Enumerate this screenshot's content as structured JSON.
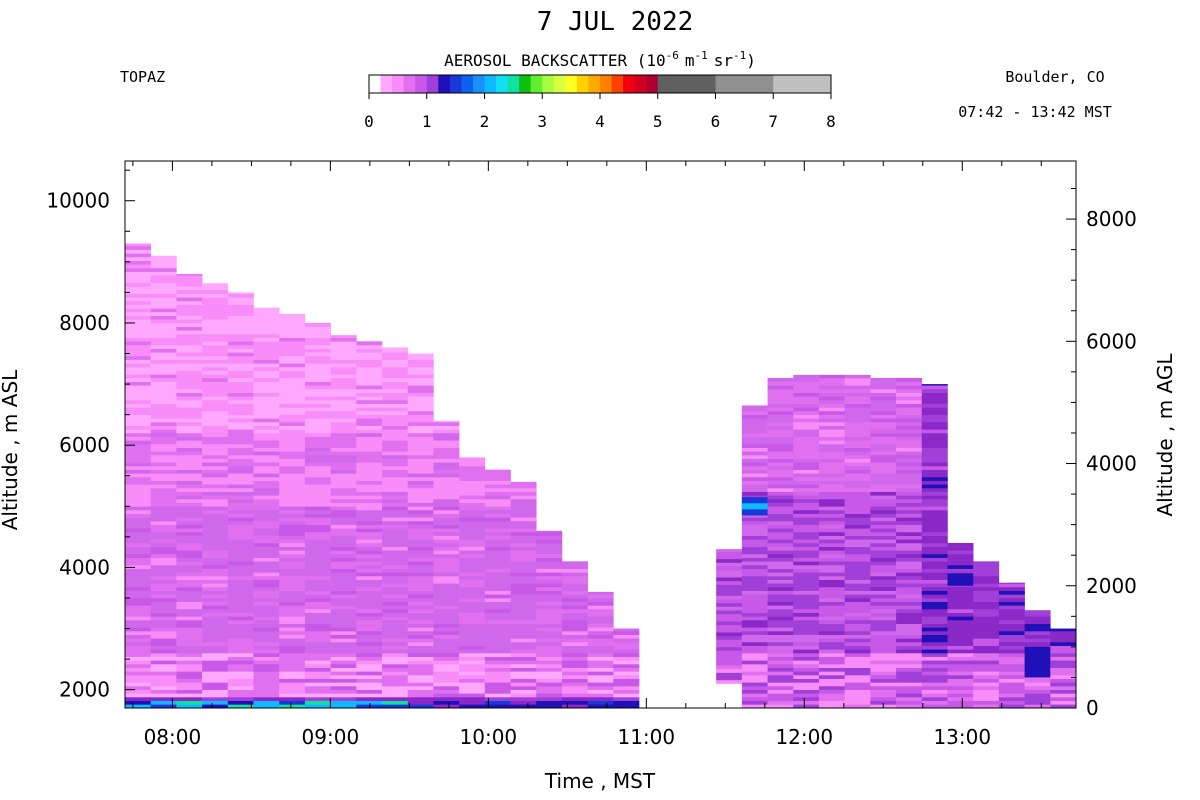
{
  "header": {
    "title": "7 JUL 2022",
    "instrument": "TOPAZ",
    "location": "Boulder, CO",
    "time_range": "07:42 - 13:42 MST"
  },
  "colorbar": {
    "label_main": "AEROSOL BACKSCATTER (10",
    "label_exp1": "-6",
    "label_unit1": "m",
    "label_exp2": "-1",
    "label_unit2": "sr",
    "label_exp3": "-1",
    "label_close": ")",
    "tick_labels": [
      "0",
      "1",
      "2",
      "3",
      "4",
      "5",
      "6",
      "7",
      "8"
    ],
    "bins": [
      {
        "lo": 0.0,
        "hi": 0.2,
        "color": "#ffffff"
      },
      {
        "lo": 0.2,
        "hi": 0.4,
        "color": "#ffa8ff"
      },
      {
        "lo": 0.4,
        "hi": 0.6,
        "color": "#f88cf8"
      },
      {
        "lo": 0.6,
        "hi": 0.8,
        "color": "#e070f0"
      },
      {
        "lo": 0.8,
        "hi": 1.0,
        "color": "#c858e8"
      },
      {
        "lo": 1.0,
        "hi": 1.2,
        "color": "#a040d8"
      },
      {
        "lo": 1.2,
        "hi": 1.4,
        "color": "#2010b8"
      },
      {
        "lo": 1.4,
        "hi": 1.6,
        "color": "#1838d8"
      },
      {
        "lo": 1.6,
        "hi": 1.8,
        "color": "#1060f0"
      },
      {
        "lo": 1.8,
        "hi": 2.0,
        "color": "#1890ff"
      },
      {
        "lo": 2.0,
        "hi": 2.2,
        "color": "#10b8ff"
      },
      {
        "lo": 2.2,
        "hi": 2.4,
        "color": "#10e0f0"
      },
      {
        "lo": 2.4,
        "hi": 2.6,
        "color": "#10e0a0"
      },
      {
        "lo": 2.6,
        "hi": 2.8,
        "color": "#10c010"
      },
      {
        "lo": 2.8,
        "hi": 3.0,
        "color": "#60f030"
      },
      {
        "lo": 3.0,
        "hi": 3.2,
        "color": "#a8ff40"
      },
      {
        "lo": 3.2,
        "hi": 3.4,
        "color": "#d8ff40"
      },
      {
        "lo": 3.4,
        "hi": 3.6,
        "color": "#ffff20"
      },
      {
        "lo": 3.6,
        "hi": 3.8,
        "color": "#ffd000"
      },
      {
        "lo": 3.8,
        "hi": 4.0,
        "color": "#ffa800"
      },
      {
        "lo": 4.0,
        "hi": 4.2,
        "color": "#ff8000"
      },
      {
        "lo": 4.2,
        "hi": 4.4,
        "color": "#ff4000"
      },
      {
        "lo": 4.4,
        "hi": 4.6,
        "color": "#f00010"
      },
      {
        "lo": 4.6,
        "hi": 4.8,
        "color": "#d00020"
      },
      {
        "lo": 4.8,
        "hi": 5.0,
        "color": "#b00030"
      },
      {
        "lo": 5.0,
        "hi": 6.0,
        "color": "#606060"
      },
      {
        "lo": 6.0,
        "hi": 7.0,
        "color": "#909090"
      },
      {
        "lo": 7.0,
        "hi": 8.0,
        "color": "#c0c0c0"
      }
    ]
  },
  "chart_data": {
    "type": "heatmap",
    "xlabel": "Time , MST",
    "ylabel_left": "Altitude , m ASL",
    "ylabel_right": "Altitude , m AGL",
    "x_tick_labels": [
      "08:00",
      "09:00",
      "10:00",
      "11:00",
      "12:00",
      "13:00"
    ],
    "x_tick_values_h": [
      8,
      9,
      10,
      11,
      12,
      13
    ],
    "xlim_h": [
      7.7,
      13.72
    ],
    "ylim_asl": [
      1700,
      10650
    ],
    "ylim_agl": [
      0,
      8950
    ],
    "y_ticks_asl": [
      2000,
      4000,
      6000,
      8000,
      10000
    ],
    "y_ticks_agl": [
      0,
      2000,
      4000,
      6000,
      8000
    ],
    "profile_top_asl": [
      9300,
      9100,
      8800,
      8650,
      8500,
      8250,
      8150,
      8000,
      7800,
      7700,
      7600,
      7500,
      6400,
      5800,
      5600,
      5400,
      4600,
      4100,
      3600,
      3000,
      null,
      null,
      null,
      4300,
      6650,
      7100,
      7150,
      7150,
      7150,
      7100,
      7100,
      7000,
      4400,
      4100,
      3750,
      3300,
      3000
    ],
    "profile_bottom_asl": [
      1700,
      1700,
      1700,
      1700,
      1700,
      1700,
      1700,
      1700,
      1700,
      1700,
      1700,
      1700,
      1700,
      1700,
      1700,
      1700,
      1700,
      1700,
      1700,
      1700,
      null,
      null,
      null,
      2100,
      1700,
      1700,
      1700,
      1700,
      1700,
      1700,
      1700,
      1700,
      1700,
      1700,
      1700,
      1700,
      1700
    ],
    "typical_backscatter": {
      "free_troposphere_above_6000m": "0.2-0.6",
      "mid_layer_2500_5000m": "0.6-1.0",
      "boundary_layer_near_surface": "1.0-2.6",
      "afternoon_layer_2000_5000m": "1.0-1.4"
    }
  }
}
